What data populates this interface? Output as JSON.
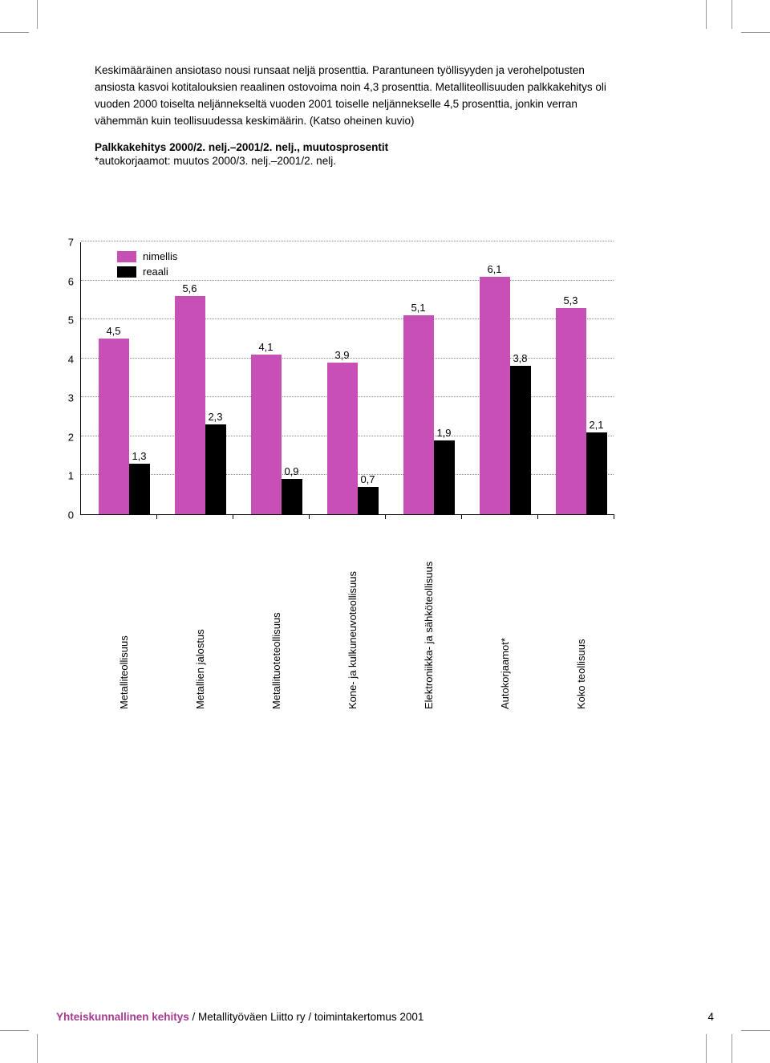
{
  "text": {
    "paragraph": "Keskimääräinen ansiotaso nousi runsaat neljä prosenttia. Parantuneen työllisyyden ja verohelpotusten ansiosta kasvoi kotitalouksien reaalinen ostovoima noin 4,3 prosenttia. Metalliteollisuuden palkkakehitys oli vuoden 2000 toiselta neljännekseltä vuoden 2001 toiselle neljännekselle 4,5 prosenttia, jonkin verran vähemmän kuin teollisuudessa keskimäärin. (Katso oheinen kuvio)",
    "chart_title": "Palkkakehitys 2000/2. nelj.–2001/2. nelj., muutosprosentit",
    "chart_subtitle": "*autokorjaamot: muutos 2000/3. nelj.–2001/2. nelj."
  },
  "chart": {
    "type": "bar",
    "ylim": [
      0,
      7
    ],
    "ytick_step": 1,
    "grid_color": "#888888",
    "axis_color": "#000000",
    "bar_width_nimellis": 38,
    "bar_width_reaali": 26,
    "bar_gap": 0,
    "colors": {
      "nimellis": "#c84fb6",
      "reaali": "#000000"
    },
    "legend": [
      {
        "label": "nimellis",
        "color": "#c84fb6"
      },
      {
        "label": "reaali",
        "color": "#000000"
      }
    ],
    "categories": [
      "Metalliteollisuus",
      "Metallien jalostus",
      "Metallituoteteollisuus",
      "Kone- ja kulkuneuvoteollisuus",
      "Elektroniikka- ja sähköteollisuus",
      "Autokorjaamot*",
      "Koko teollisuus"
    ],
    "series": {
      "nimellis": [
        4.5,
        5.6,
        4.1,
        3.9,
        5.1,
        6.1,
        5.3
      ],
      "reaali": [
        1.3,
        2.3,
        0.9,
        0.7,
        1.9,
        3.8,
        2.1
      ]
    },
    "labels": {
      "nimellis": [
        "4,5",
        "5,6",
        "4,1",
        "3,9",
        "5,1",
        "6,1",
        "5,3"
      ],
      "reaali": [
        "1,3",
        "2,3",
        "0,9",
        "0,7",
        "1,9",
        "3,8",
        "2,1"
      ]
    }
  },
  "footer": {
    "accent": "Yhteiskunnallinen kehitys",
    "rest": " / Metallityöväen Liitto ry / toimintakertomus 2001",
    "page": "4"
  }
}
